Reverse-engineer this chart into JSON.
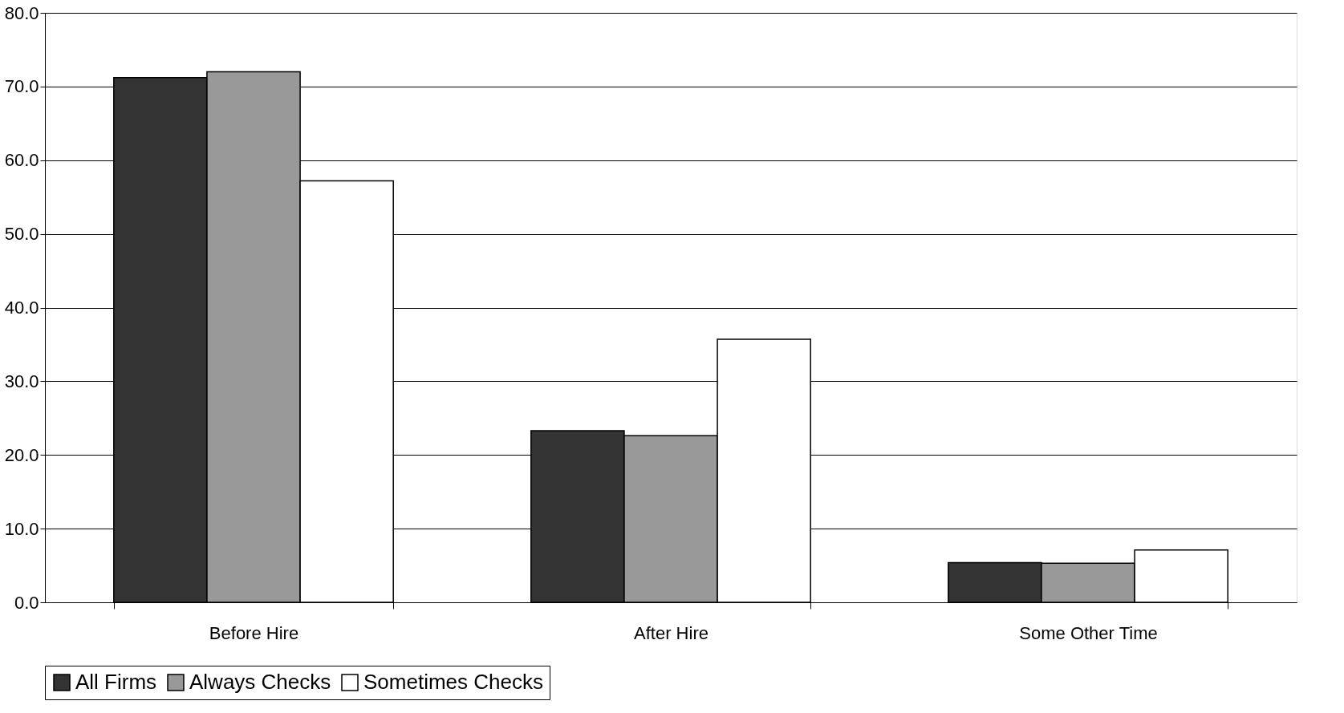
{
  "chart_data": {
    "type": "bar",
    "categories": [
      "Before Hire",
      "After Hire",
      "Some Other Time"
    ],
    "series": [
      {
        "name": "All Firms",
        "color": "#333333",
        "values": [
          71.2,
          23.3,
          5.4
        ]
      },
      {
        "name": "Always Checks",
        "color": "#999999",
        "values": [
          72.0,
          22.6,
          5.3
        ]
      },
      {
        "name": "Sometimes Checks",
        "color": "#ffffff",
        "values": [
          57.2,
          35.7,
          7.1
        ]
      }
    ],
    "ylim": [
      0,
      80
    ],
    "yticks": [
      {
        "value": 0,
        "label": "0.0"
      },
      {
        "value": 10,
        "label": "10.0"
      },
      {
        "value": 20,
        "label": "20.0"
      },
      {
        "value": 30,
        "label": "30.0"
      },
      {
        "value": 40,
        "label": "40.0"
      },
      {
        "value": 50,
        "label": "50.0"
      },
      {
        "value": 60,
        "label": "60.0"
      },
      {
        "value": 70,
        "label": "70.0"
      },
      {
        "value": 80,
        "label": "80.0"
      }
    ],
    "grid": "y",
    "legend": "bottom"
  }
}
